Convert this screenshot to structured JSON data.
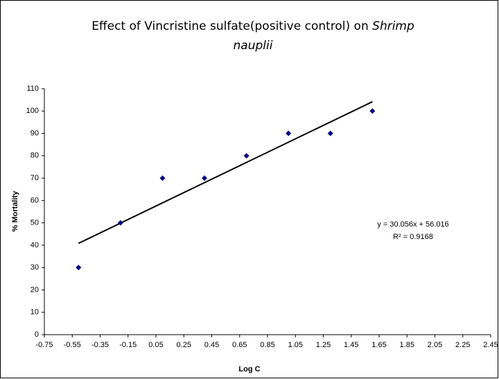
{
  "chart_data": {
    "type": "scatter",
    "title": "Effect of Vincristine sulfate(positive control) on",
    "title_species": [
      "Shrimp",
      "nauplii"
    ],
    "x_label": "Log C",
    "y_label": "% Mortality",
    "x": [
      -0.505,
      -0.204,
      0.097,
      0.398,
      0.699,
      1.0,
      1.301,
      1.602
    ],
    "values": [
      30,
      50,
      70,
      70,
      80,
      90,
      90,
      100
    ],
    "color": "#000080",
    "trendline": {
      "slope": 30.056,
      "intercept": 56.016
    },
    "annotations": [
      "y = 30.056x + 56.016",
      "R² = 0.9168"
    ],
    "xlim": [
      -0.75,
      2.45
    ],
    "xticks": [
      -0.75,
      -0.55,
      -0.35,
      -0.15,
      0.05,
      0.25,
      0.45,
      0.65,
      0.85,
      1.05,
      1.25,
      1.45,
      1.65,
      1.85,
      2.05,
      2.25,
      2.45
    ],
    "ylim": [
      0,
      110
    ],
    "yticks": [
      0,
      10,
      20,
      30,
      40,
      50,
      60,
      70,
      80,
      90,
      100,
      110
    ]
  }
}
